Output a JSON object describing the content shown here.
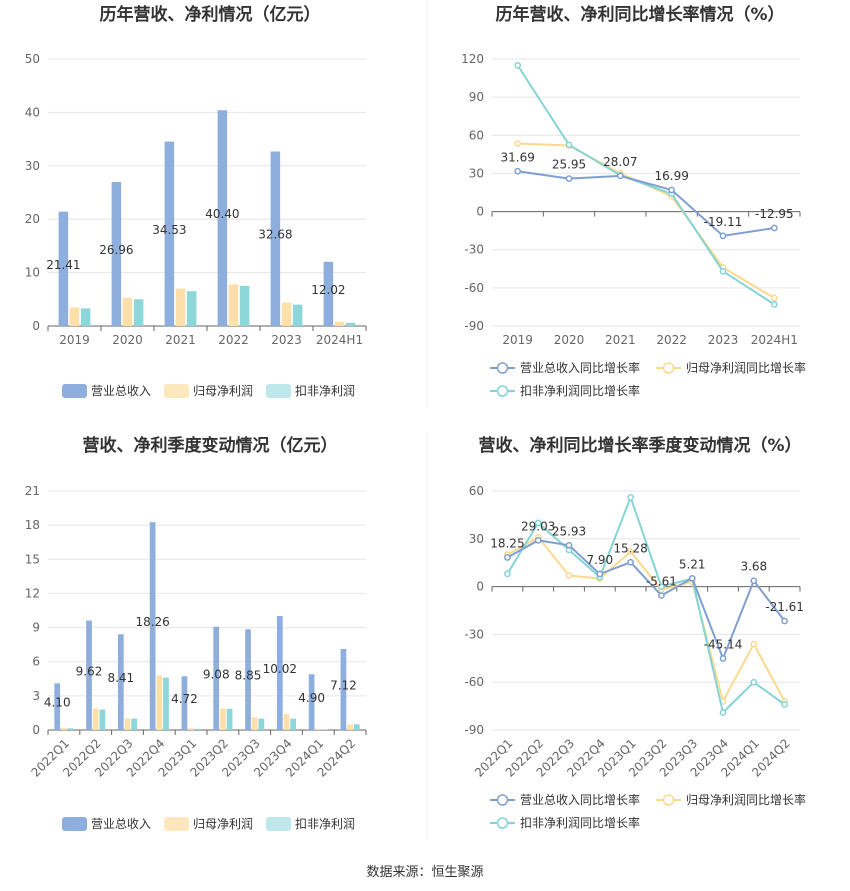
{
  "source": "数据来源：恒生聚源",
  "colors": {
    "revenue": "#8eaedd",
    "net_profit": "#fde0a9",
    "deducted": "#8dd6d9",
    "line_revenue": "#7f9fd0",
    "line_net": "#fcd98f",
    "line_deducted": "#84d4d6",
    "grid": "#e6e6e6"
  },
  "chart_data": [
    {
      "type": "bar",
      "title": "历年营收、净利情况（亿元）",
      "categories": [
        "2019",
        "2020",
        "2021",
        "2022",
        "2023",
        "2024H1"
      ],
      "ylim": [
        0,
        50
      ],
      "yticks": [
        0,
        10,
        20,
        30,
        40,
        50
      ],
      "series": [
        {
          "name": "营业总收入",
          "values": [
            21.41,
            26.96,
            34.53,
            40.4,
            32.68,
            12.02
          ],
          "labels": [
            "21.41",
            "26.96",
            "34.53",
            "40.40",
            "32.68",
            "12.02"
          ]
        },
        {
          "name": "归母净利润",
          "values": [
            3.5,
            5.3,
            7.0,
            7.8,
            4.4,
            0.8
          ]
        },
        {
          "name": "扣非净利润",
          "values": [
            3.3,
            5.0,
            6.5,
            7.5,
            4.0,
            0.6
          ]
        }
      ],
      "legend": "bottom",
      "grid": true
    },
    {
      "type": "line",
      "title": "历年营收、净利同比增长率情况（%）",
      "categories": [
        "2019",
        "2020",
        "2021",
        "2022",
        "2023",
        "2024H1"
      ],
      "ylim": [
        -90,
        120
      ],
      "yticks": [
        -90,
        -60,
        -30,
        0,
        30,
        60,
        90,
        120
      ],
      "series": [
        {
          "name": "营业总收入同比增长率",
          "values": [
            31.69,
            25.95,
            28.07,
            16.99,
            -19.11,
            -12.95
          ],
          "labels": [
            "31.69",
            "25.95",
            "28.07",
            "16.99",
            "-19.11",
            "-12.95"
          ]
        },
        {
          "name": "归母净利润同比增长率",
          "values": [
            53.5,
            52.0,
            30.0,
            12.0,
            -44.0,
            -68.0
          ]
        },
        {
          "name": "扣非净利润同比增长率",
          "values": [
            115.0,
            52.5,
            28.5,
            14.0,
            -47.0,
            -73.0
          ]
        }
      ],
      "legend": "bottom",
      "grid": true
    },
    {
      "type": "bar",
      "title": "营收、净利季度变动情况（亿元）",
      "categories": [
        "2022Q1",
        "2022Q2",
        "2022Q3",
        "2022Q4",
        "2023Q1",
        "2023Q2",
        "2023Q3",
        "2023Q4",
        "2024Q1",
        "2024Q2"
      ],
      "ylim": [
        0,
        21
      ],
      "yticks": [
        0,
        3,
        6,
        9,
        12,
        15,
        18,
        21
      ],
      "series": [
        {
          "name": "营业总收入",
          "values": [
            4.1,
            9.62,
            8.41,
            18.26,
            4.72,
            9.08,
            8.85,
            10.02,
            4.9,
            7.12
          ],
          "labels": [
            "4.10",
            "9.62",
            "8.41",
            "18.26",
            "4.72",
            "9.08",
            "8.85",
            "10.02",
            "4.90",
            "7.12"
          ]
        },
        {
          "name": "归母净利润",
          "values": [
            0.2,
            1.9,
            1.0,
            4.8,
            0.15,
            1.9,
            1.1,
            1.4,
            0.1,
            0.5
          ]
        },
        {
          "name": "扣非净利润",
          "values": [
            0.15,
            1.8,
            1.0,
            4.6,
            0.1,
            1.85,
            1.0,
            1.0,
            0.05,
            0.5
          ]
        }
      ],
      "legend": "bottom",
      "grid": true
    },
    {
      "type": "line",
      "title": "营收、净利同比增长率季度变动情况（%）",
      "categories": [
        "2022Q1",
        "2022Q2",
        "2022Q3",
        "2022Q4",
        "2023Q1",
        "2023Q2",
        "2023Q3",
        "2023Q4",
        "2024Q1",
        "2024Q2"
      ],
      "ylim": [
        -90,
        60
      ],
      "yticks": [
        -90,
        -60,
        -30,
        0,
        30,
        60
      ],
      "series": [
        {
          "name": "营业总收入同比增长率",
          "values": [
            18.25,
            29.03,
            25.93,
            7.9,
            15.28,
            -5.61,
            5.21,
            -45.14,
            3.68,
            -21.61
          ],
          "labels": [
            "18.25",
            "29.03",
            "25.93",
            "7.90",
            "15.28",
            "-5.61",
            "5.21",
            "-45.14",
            "3.68",
            "-21.61"
          ]
        },
        {
          "name": "归母净利润同比增长率",
          "values": [
            20.0,
            31.0,
            7.0,
            5.0,
            22.0,
            -2.0,
            3.0,
            -72.0,
            -36.0,
            -72.0
          ]
        },
        {
          "name": "扣非净利润同比增长率",
          "values": [
            8.0,
            40.0,
            23.0,
            6.0,
            56.0,
            0.0,
            5.0,
            -79.0,
            -60.0,
            -74.0
          ]
        }
      ],
      "legend": "bottom",
      "grid": true
    }
  ]
}
